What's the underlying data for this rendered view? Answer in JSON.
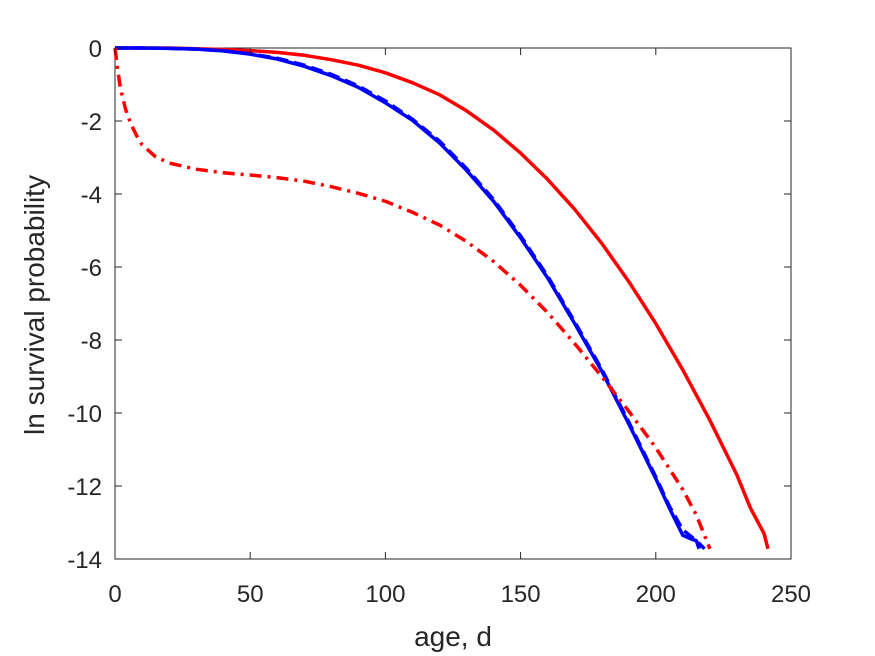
{
  "chart_data": {
    "type": "line",
    "title": "",
    "xlabel": "age, d",
    "ylabel": "ln survival probability",
    "xlim": [
      0,
      250
    ],
    "ylim": [
      -14,
      0
    ],
    "xticks": [
      0,
      50,
      100,
      150,
      200,
      250
    ],
    "yticks": [
      0,
      -2,
      -4,
      -6,
      -8,
      -10,
      -12,
      -14
    ],
    "grid": false,
    "legend": "none",
    "series": [
      {
        "color": "#ff0000",
        "style": "solid",
        "x": [
          0,
          10,
          20,
          30,
          40,
          50,
          60,
          70,
          80,
          90,
          100,
          110,
          120,
          130,
          140,
          150,
          160,
          170,
          180,
          190,
          200,
          210,
          220,
          230,
          235,
          240,
          241.5
        ],
        "y": [
          0,
          0,
          0,
          -0.02,
          -0.04,
          -0.07,
          -0.12,
          -0.2,
          -0.32,
          -0.47,
          -0.68,
          -0.95,
          -1.28,
          -1.72,
          -2.25,
          -2.88,
          -3.6,
          -4.42,
          -5.35,
          -6.4,
          -7.55,
          -8.82,
          -10.2,
          -11.7,
          -12.6,
          -13.3,
          -13.72
        ]
      },
      {
        "color": "#0000ff",
        "style": "solid",
        "x": [
          0,
          10,
          20,
          30,
          40,
          50,
          60,
          70,
          80,
          90,
          100,
          110,
          120,
          130,
          140,
          150,
          160,
          170,
          180,
          190,
          200,
          205,
          210,
          213,
          215,
          216
        ],
        "y": [
          0,
          0,
          -0.01,
          -0.03,
          -0.08,
          -0.17,
          -0.3,
          -0.5,
          -0.76,
          -1.08,
          -1.5,
          -1.98,
          -2.6,
          -3.35,
          -4.2,
          -5.2,
          -6.3,
          -7.55,
          -8.85,
          -10.3,
          -11.8,
          -12.6,
          -13.35,
          -13.45,
          -13.5,
          -13.72
        ]
      },
      {
        "color": "#0000ff",
        "style": "dashed",
        "x": [
          0,
          10,
          20,
          30,
          40,
          50,
          60,
          70,
          80,
          90,
          100,
          110,
          120,
          130,
          140,
          150,
          160,
          170,
          180,
          190,
          200,
          205,
          210,
          215,
          218
        ],
        "y": [
          0,
          0,
          -0.01,
          -0.03,
          -0.08,
          -0.16,
          -0.28,
          -0.47,
          -0.72,
          -1.04,
          -1.45,
          -1.95,
          -2.55,
          -3.3,
          -4.15,
          -5.15,
          -6.25,
          -7.5,
          -8.8,
          -10.25,
          -11.75,
          -12.55,
          -13.2,
          -13.5,
          -13.72
        ]
      },
      {
        "color": "#ff0000",
        "style": "dashdot",
        "x": [
          0,
          1,
          2,
          4,
          6,
          8,
          10,
          15,
          20,
          30,
          40,
          50,
          60,
          70,
          80,
          90,
          100,
          110,
          120,
          130,
          140,
          150,
          160,
          170,
          180,
          190,
          200,
          210,
          215,
          220
        ],
        "y": [
          0,
          -0.6,
          -1.1,
          -1.7,
          -2.1,
          -2.4,
          -2.65,
          -2.98,
          -3.15,
          -3.32,
          -3.42,
          -3.48,
          -3.55,
          -3.65,
          -3.8,
          -3.98,
          -4.2,
          -4.5,
          -4.85,
          -5.3,
          -5.85,
          -6.5,
          -7.25,
          -8.1,
          -9.0,
          -9.95,
          -10.95,
          -12.1,
          -12.8,
          -13.72
        ]
      }
    ]
  }
}
